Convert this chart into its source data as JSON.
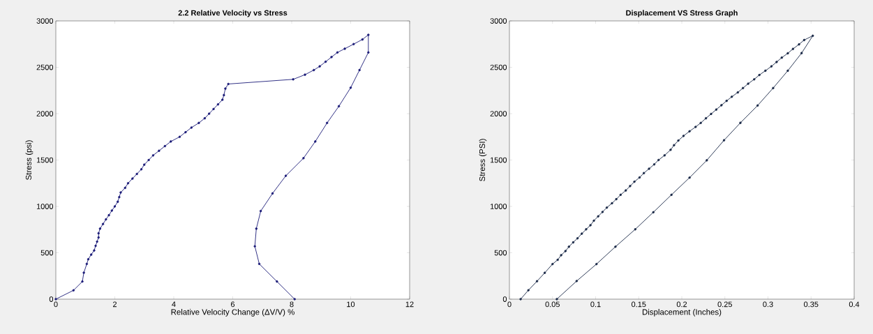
{
  "chart_data": [
    {
      "type": "line",
      "title": "2.2 Relative Velocity vs Stress",
      "xlabel": "Relative Velocity Change (ΔV/V) %",
      "ylabel": "Stress (psi)",
      "xlim": [
        0,
        12
      ],
      "ylim": [
        0,
        3000
      ],
      "xticks": [
        0,
        2,
        4,
        6,
        8,
        10,
        12
      ],
      "yticks": [
        0,
        500,
        1000,
        1500,
        2000,
        2500,
        3000
      ],
      "marker": "circle",
      "series": [
        {
          "color": "#1c1c78",
          "x": [
            0,
            0.6,
            0.9,
            0.95,
            1.05,
            1.1,
            1.2,
            1.3,
            1.35,
            1.4,
            1.45,
            1.45,
            1.5,
            1.6,
            1.7,
            1.8,
            1.9,
            2.0,
            2.1,
            2.15,
            2.2,
            2.35,
            2.45,
            2.6,
            2.75,
            2.9,
            3.0,
            3.15,
            3.3,
            3.5,
            3.7,
            3.9,
            4.2,
            4.4,
            4.6,
            4.85,
            5.05,
            5.2,
            5.35,
            5.5,
            5.65,
            5.7,
            5.75,
            5.85,
            8.05,
            8.45,
            8.75,
            8.95,
            9.15,
            9.35,
            9.55,
            9.8,
            10.1,
            10.4,
            10.6,
            10.6,
            10.3,
            10.0,
            9.6,
            9.2,
            8.8,
            8.4,
            7.8,
            7.35,
            6.95,
            6.8,
            6.75,
            6.9,
            7.5,
            8.1
          ],
          "values": [
            0,
            95,
            190,
            285,
            380,
            430,
            480,
            525,
            575,
            620,
            665,
            710,
            760,
            810,
            860,
            905,
            955,
            1000,
            1050,
            1100,
            1150,
            1200,
            1250,
            1300,
            1350,
            1400,
            1450,
            1500,
            1550,
            1600,
            1650,
            1700,
            1750,
            1800,
            1850,
            1900,
            1950,
            2000,
            2050,
            2100,
            2150,
            2200,
            2270,
            2320,
            2370,
            2420,
            2470,
            2510,
            2560,
            2610,
            2660,
            2700,
            2750,
            2800,
            2850,
            2660,
            2470,
            2280,
            2080,
            1900,
            1700,
            1520,
            1330,
            1140,
            950,
            760,
            570,
            380,
            190,
            0
          ]
        }
      ]
    },
    {
      "type": "line",
      "title": "Displacement VS Stress Graph",
      "xlabel": "Displacement (Inches)",
      "ylabel": "Stress (PSI)",
      "xlim": [
        0,
        0.4
      ],
      "ylim": [
        0,
        3000
      ],
      "xticks": [
        0,
        0.05,
        0.1,
        0.15,
        0.2,
        0.25,
        0.3,
        0.35,
        0.4
      ],
      "yticks": [
        0,
        500,
        1000,
        1500,
        2000,
        2500,
        3000
      ],
      "marker": "circle",
      "series": [
        {
          "color": "#1c2a48",
          "x": [
            0.013,
            0.022,
            0.032,
            0.041,
            0.05,
            0.056,
            0.06,
            0.065,
            0.069,
            0.074,
            0.079,
            0.084,
            0.089,
            0.094,
            0.098,
            0.103,
            0.108,
            0.113,
            0.119,
            0.124,
            0.129,
            0.135,
            0.14,
            0.145,
            0.151,
            0.156,
            0.162,
            0.168,
            0.173,
            0.18,
            0.187,
            0.191,
            0.196,
            0.202,
            0.209,
            0.216,
            0.222,
            0.228,
            0.234,
            0.24,
            0.246,
            0.252,
            0.258,
            0.265,
            0.271,
            0.277,
            0.284,
            0.29,
            0.297,
            0.304,
            0.31,
            0.316,
            0.323,
            0.329,
            0.336,
            0.342,
            0.352,
            0.339,
            0.323,
            0.306,
            0.288,
            0.268,
            0.249,
            0.229,
            0.209,
            0.188,
            0.167,
            0.146,
            0.123,
            0.101,
            0.078,
            0.055
          ],
          "values": [
            0,
            96,
            193,
            284,
            378,
            424,
            474,
            518,
            565,
            612,
            656,
            706,
            753,
            797,
            846,
            893,
            940,
            987,
            1034,
            1078,
            1125,
            1172,
            1219,
            1266,
            1312,
            1359,
            1406,
            1453,
            1500,
            1550,
            1610,
            1660,
            1710,
            1760,
            1810,
            1857,
            1900,
            1950,
            1997,
            2044,
            2091,
            2138,
            2182,
            2229,
            2276,
            2323,
            2370,
            2417,
            2463,
            2510,
            2557,
            2604,
            2651,
            2698,
            2747,
            2794,
            2840,
            2653,
            2463,
            2276,
            2088,
            1901,
            1713,
            1497,
            1310,
            1125,
            937,
            753,
            565,
            378,
            195,
            0
          ]
        }
      ]
    }
  ]
}
